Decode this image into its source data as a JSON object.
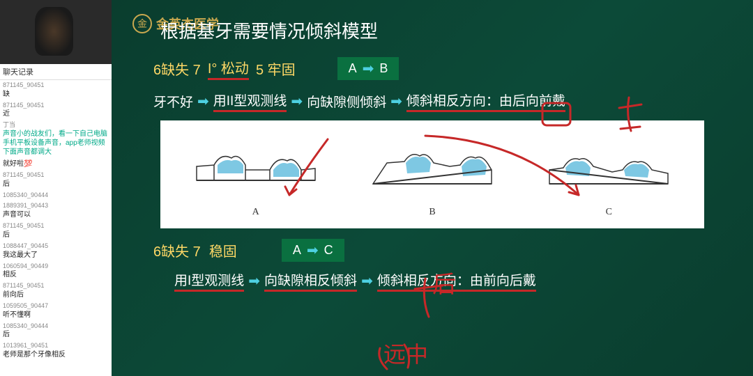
{
  "sidebar": {
    "chat_header": "聊天记录",
    "items": [
      {
        "user": "871145_90451",
        "text": "缺"
      },
      {
        "user": "871145_90451",
        "text": "近"
      },
      {
        "user": "丁当",
        "text": "声音小的战友们，看一下自己电脑手机平板设备声音，app老师视频下面声音都调大",
        "green": true
      },
      {
        "user": "",
        "text": "就好啦💯"
      },
      {
        "user": "871145_90451",
        "text": "后"
      },
      {
        "user": "1085340_90444",
        "text": ""
      },
      {
        "user": "1889391_90443",
        "text": "声音可以"
      },
      {
        "user": "871145_90451",
        "text": "后"
      },
      {
        "user": "1088447_90445",
        "text": "我这最大了"
      },
      {
        "user": "1060594_90449",
        "text": "相反"
      },
      {
        "user": "871145_90451",
        "text": "前向后"
      },
      {
        "user": "1059505_90447",
        "text": "听不懂啊"
      },
      {
        "user": "1085340_90444",
        "text": "后"
      },
      {
        "user": "1013961_90451",
        "text": "老师是那个牙像相反"
      }
    ]
  },
  "slide": {
    "brand": "金英杰医学",
    "title": "根据基牙需要情况倾斜模型",
    "case1_prefix": "6缺失 7",
    "case1_mid": "I° 松动",
    "case1_suffix": "5 牢固",
    "badge1_a": "A",
    "badge1_b": "B",
    "flow1_a": "牙不好",
    "flow1_b": "用II型观测线",
    "flow1_c": "向缺隙侧倾斜",
    "flow1_d": "倾斜相反方向：由后向前戴",
    "diag_labels": [
      "A",
      "B",
      "C"
    ],
    "case2_prefix": "6缺失 7",
    "case2_suffix": "稳固",
    "badge2_a": "A",
    "badge2_b": "C",
    "flow2_a": "用I型观测线",
    "flow2_b": "向缺隙相反倾斜",
    "flow2_c": "倾斜相反方向：由前向后戴",
    "annotation_text1": "后",
    "annotation_text2": "远中",
    "colors": {
      "bg": "#0a3d2e",
      "yellow": "#ffd866",
      "red": "#c62828",
      "cyan": "#4dd0e1",
      "white": "#ffffff",
      "badge": "#0a7040",
      "gold": "#c9a84f"
    }
  }
}
